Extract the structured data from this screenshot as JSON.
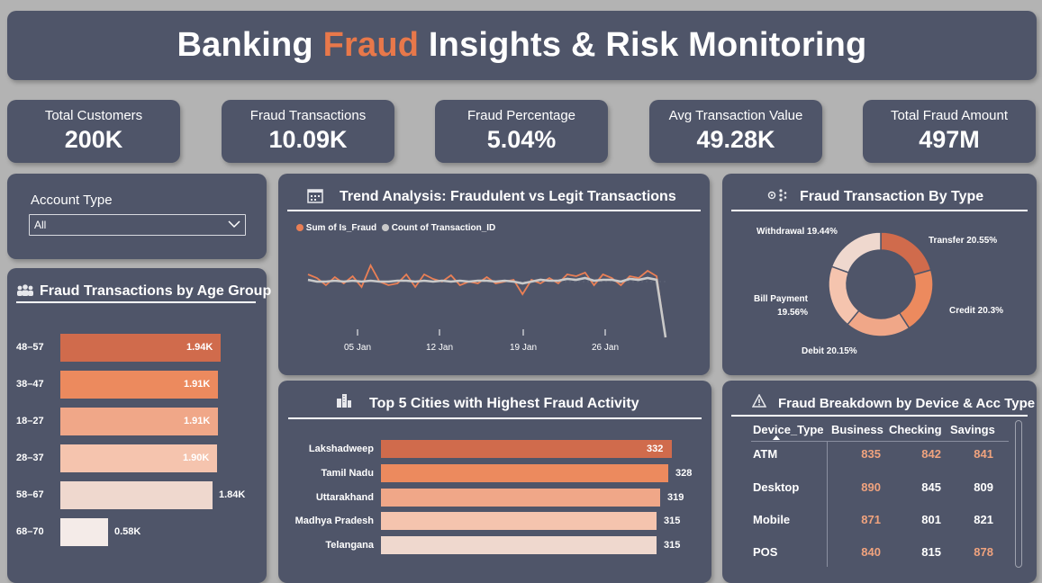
{
  "title": {
    "pre": "Banking ",
    "accent": "Fraud",
    "post": " Insights & Risk Monitoring"
  },
  "kpis": [
    {
      "label": "Total Customers",
      "value": "200K"
    },
    {
      "label": "Fraud Transactions",
      "value": "10.09K"
    },
    {
      "label": "Fraud Percentage",
      "value": "5.04%"
    },
    {
      "label": "Avg Transaction Value",
      "value": "49.28K"
    },
    {
      "label": "Total Fraud Amount",
      "value": "497M"
    }
  ],
  "filter": {
    "label": "Account Type",
    "selected": "All"
  },
  "age_panel": {
    "title": "Fraud Transactions by Age Group",
    "icon": "people-icon"
  },
  "trend_panel": {
    "title": "Trend Analysis: Fraudulent vs Legit Transactions",
    "icon": "calendar-chart-icon",
    "legend": [
      "Sum of Is_Fraud",
      "Count of Transaction_ID"
    ],
    "xticks": [
      "05 Jan",
      "12 Jan",
      "19 Jan",
      "26 Jan"
    ]
  },
  "type_panel": {
    "title": "Fraud Transaction By Type",
    "icon": "nodes-icon"
  },
  "city_panel": {
    "title": "Top 5 Cities with Highest Fraud Activity",
    "icon": "buildings-icon"
  },
  "device_panel": {
    "title": "Fraud Breakdown by Device & Acc Type",
    "icon": "warning-icon",
    "columns": [
      "Device_Type",
      "Business",
      "Checking",
      "Savings"
    ],
    "rows": [
      {
        "device": "ATM",
        "business": "835",
        "checking": "842",
        "savings": "841"
      },
      {
        "device": "Desktop",
        "business": "890",
        "checking": "845",
        "savings": "809"
      },
      {
        "device": "Mobile",
        "business": "871",
        "checking": "801",
        "savings": "821"
      },
      {
        "device": "POS",
        "business": "840",
        "checking": "815",
        "savings": "878"
      }
    ],
    "highlight_color": "#f0a37e"
  },
  "colors": {
    "accent": "#e8784a",
    "panel": "#4f5569",
    "background": "#b3b3b3"
  },
  "chart_data": [
    {
      "type": "bar",
      "orientation": "horizontal",
      "categories": [
        "48–57",
        "38–47",
        "18–27",
        "28–37",
        "58–67",
        "68–70"
      ],
      "values": [
        1940,
        1910,
        1910,
        1900,
        1840,
        580
      ],
      "labels": [
        "1.94K",
        "1.91K",
        "1.91K",
        "1.90K",
        "1.84K",
        "0.58K"
      ],
      "colors": [
        "#d06b4c",
        "#ec8a5e",
        "#f0a788",
        "#f5c4ae",
        "#efd8ce",
        "#f4ebe8"
      ]
    },
    {
      "type": "line",
      "series": [
        {
          "name": "Sum of Is_Fraud",
          "color": "#ea7f55",
          "values": [
            0.7,
            0.66,
            0.58,
            0.67,
            0.6,
            0.68,
            0.56,
            0.8,
            0.62,
            0.58,
            0.6,
            0.7,
            0.56,
            0.7,
            0.65,
            0.62,
            0.69,
            0.58,
            0.62,
            0.6,
            0.67,
            0.6,
            0.62,
            0.64,
            0.48,
            0.64,
            0.6,
            0.66,
            0.6,
            0.7,
            0.68,
            0.72,
            0.58,
            0.7,
            0.66,
            0.58,
            0.68,
            0.66,
            0.74,
            0.68,
            0.0
          ]
        },
        {
          "name": "Count of Transaction_ID",
          "color": "#c9c9c9",
          "values": [
            0.64,
            0.62,
            0.62,
            0.63,
            0.62,
            0.63,
            0.62,
            0.63,
            0.62,
            0.62,
            0.63,
            0.63,
            0.62,
            0.63,
            0.62,
            0.63,
            0.62,
            0.63,
            0.62,
            0.63,
            0.63,
            0.62,
            0.63,
            0.62,
            0.6,
            0.62,
            0.64,
            0.63,
            0.63,
            0.65,
            0.64,
            0.66,
            0.63,
            0.64,
            0.64,
            0.62,
            0.65,
            0.64,
            0.66,
            0.64,
            0.0
          ]
        }
      ],
      "xticks": [
        "05 Jan",
        "12 Jan",
        "19 Jan",
        "26 Jan"
      ]
    },
    {
      "type": "pie",
      "donut": true,
      "categories": [
        "Transfer",
        "Credit",
        "Debit",
        "Bill Payment",
        "Withdrawal"
      ],
      "values": [
        20.55,
        20.3,
        20.15,
        19.56,
        19.44
      ],
      "labels": [
        "Transfer 20.55%",
        "Credit 20.3%",
        "Debit 20.15%",
        "Bill Payment 19.56%",
        "Withdrawal 19.44%"
      ],
      "colors": [
        "#d06b4c",
        "#ec8a5e",
        "#f0a788",
        "#f5c4ae",
        "#efd8ce"
      ]
    },
    {
      "type": "bar",
      "orientation": "horizontal",
      "categories": [
        "Lakshadweep",
        "Tamil Nadu",
        "Uttarakhand",
        "Madhya Pradesh",
        "Telangana"
      ],
      "values": [
        332,
        328,
        319,
        315,
        315
      ],
      "colors": [
        "#d06b4c",
        "#ec8a5e",
        "#f0a788",
        "#f5c4ae",
        "#efd8ce"
      ]
    }
  ]
}
